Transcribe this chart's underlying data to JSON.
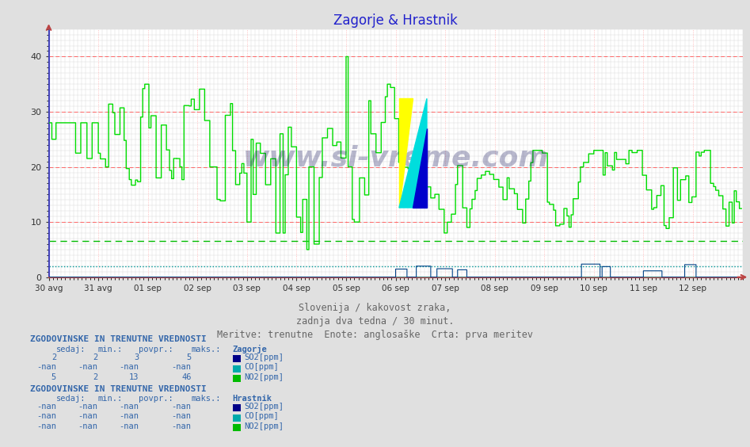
{
  "title": "Zagorje & Hrastnik",
  "title_color": "#2222cc",
  "bg_color": "#e0e0e0",
  "plot_bg_color": "#ffffff",
  "xlim": [
    0,
    672
  ],
  "ylim": [
    0,
    45
  ],
  "yticks": [
    0,
    10,
    20,
    30,
    40
  ],
  "xtick_labels": [
    "30 avg",
    "31 avg",
    "01 sep",
    "02 sep",
    "03 sep",
    "04 sep",
    "05 sep",
    "06 sep",
    "07 sep",
    "08 sep",
    "09 sep",
    "10 sep",
    "11 sep",
    "12 sep"
  ],
  "xtick_positions": [
    0,
    48,
    96,
    144,
    192,
    240,
    288,
    336,
    384,
    432,
    480,
    528,
    576,
    624
  ],
  "so2_color": "#004488",
  "co_color": "#00aaaa",
  "no2_color": "#00dd00",
  "hline_green_y": 6.5,
  "hline_cyan_y": 2.0,
  "red_hlines": [
    10,
    20,
    30,
    40
  ],
  "watermark": "www.si-vreme.com",
  "text1": "Slovenija / kakovost zraka,",
  "text2": "zadnja dva tedna / 30 minut.",
  "text3": "Meritve: trenutne  Enote: anglosaške  Crta: prva meritev",
  "left_header": "ZGODOVINSKE IN TRENUTNE VREDNOSTI",
  "col_headers": [
    "sedaj:",
    "min.:",
    "povpr.:",
    "maks.:"
  ],
  "zagorje_label": "Zagorje",
  "hrastnik_label": "Hrastnik",
  "table1_rows": [
    {
      "sedaj": "2",
      "min": "2",
      "povpr": "3",
      "maks": "5",
      "name": "SO2[ppm]",
      "color": "#000088"
    },
    {
      "sedaj": "-nan",
      "min": "-nan",
      "povpr": "-nan",
      "maks": "-nan",
      "name": "CO[ppm]",
      "color": "#00aaaa"
    },
    {
      "sedaj": "5",
      "min": "2",
      "povpr": "13",
      "maks": "46",
      "name": "NO2[ppm]",
      "color": "#00bb00"
    }
  ],
  "table2_rows": [
    {
      "sedaj": "-nan",
      "min": "-nan",
      "povpr": "-nan",
      "maks": "-nan",
      "name": "SO2[ppm]",
      "color": "#000088"
    },
    {
      "sedaj": "-nan",
      "min": "-nan",
      "povpr": "-nan",
      "maks": "-nan",
      "name": "CO[ppm]",
      "color": "#00aaaa"
    },
    {
      "sedaj": "-nan",
      "min": "-nan",
      "povpr": "-nan",
      "maks": "-nan",
      "name": "NO2[ppm]",
      "color": "#00bb00"
    }
  ]
}
